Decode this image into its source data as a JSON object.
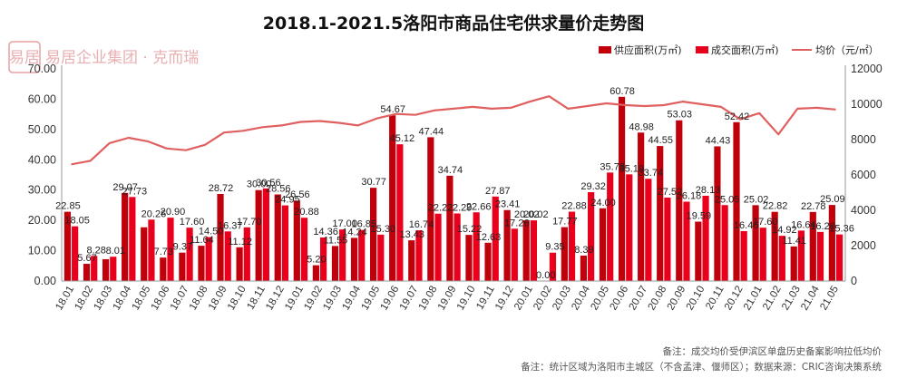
{
  "chart_data": {
    "type": "bar",
    "title": "2018.1-2021.5洛阳市商品住宅供求量价走势图",
    "categories": [
      "18.01",
      "18.02",
      "18.03",
      "18.04",
      "18.05",
      "18.06",
      "18.07",
      "18.08",
      "18.09",
      "18.10",
      "18.11",
      "18.12",
      "19.01",
      "19.02",
      "19.03",
      "19.04",
      "19.05",
      "19.06",
      "19.07",
      "19.08",
      "19.09",
      "19.10",
      "19.11",
      "19.12",
      "20.01",
      "20.02",
      "20.03",
      "20.04",
      "20.05",
      "20.06",
      "20.07",
      "20.08",
      "20.09",
      "20.10",
      "20.11",
      "20.12",
      "21.01",
      "21.02",
      "21.03",
      "21.04",
      "21.05"
    ],
    "series": [
      {
        "name": "供应面积(万㎡)",
        "color": "#c0000a",
        "values": [
          22.85,
          5.67,
          7.2,
          29.07,
          17.73,
          7.73,
          9.37,
          11.64,
          28.72,
          11.12,
          30.0,
          28.56,
          26.56,
          5.2,
          11.55,
          14.24,
          30.77,
          54.67,
          13.43,
          47.44,
          34.74,
          15.22,
          12.63,
          23.41,
          20.02,
          0.0,
          17.77,
          8.39,
          24.0,
          60.78,
          48.98,
          44.55,
          53.03,
          19.59,
          44.43,
          52.42,
          25.02,
          22.82,
          11.41,
          22.78,
          25.09
        ],
        "labels": [
          "22.85",
          "5.67",
          "",
          "29.07",
          "",
          "7.73",
          "9.37",
          "11.64",
          "28.72",
          "11.12",
          "30.00",
          "28.56",
          "26.56",
          "5.20",
          "11.55",
          "14.24",
          "30.77",
          "54.67",
          "13.43",
          "47.44",
          "34.74",
          "15.22",
          "12.63",
          "23.41",
          "20.02",
          "0.00",
          "17.77",
          "8.39",
          "24.00",
          "60.78",
          "48.98",
          "44.55",
          "53.03",
          "19.59",
          "44.43",
          "52.42",
          "25.02",
          "22.82",
          "11.41",
          "22.78",
          "25.09"
        ]
      },
      {
        "name": "成交面积(万㎡)",
        "color": "#e8001c",
        "values": [
          18.05,
          8.28,
          8.01,
          27.73,
          20.26,
          20.9,
          17.6,
          14.5,
          16.37,
          17.7,
          30.56,
          24.95,
          20.88,
          14.36,
          17.0,
          16.85,
          15.3,
          45.12,
          16.74,
          22.22,
          22.29,
          22.66,
          27.87,
          17.26,
          20.02,
          9.35,
          22.88,
          29.32,
          35.78,
          35.19,
          33.74,
          27.52,
          26.18,
          28.13,
          25.05,
          16.46,
          17.6,
          14.92,
          16.64,
          16.2,
          15.36
        ],
        "labels": [
          "18.05",
          "8.28",
          "8.01",
          "27.73",
          "20.26",
          "20.90",
          "17.60",
          "14.50",
          "16.37",
          "17.70",
          "30.56",
          "24.95",
          "20.88",
          "14.36",
          "17.00",
          "16.85",
          "15.30",
          "45.12",
          "16.74",
          "22.22",
          "22.29",
          "22.66",
          "27.87",
          "17.26",
          "20.02",
          "9.35",
          "22.88",
          "29.32",
          "35.78",
          "35.19",
          "33.74",
          "27.52",
          "26.18",
          "28.13",
          "25.05",
          "16.46",
          "17.60",
          "14.92",
          "16.64",
          "16.20",
          "15.36"
        ]
      },
      {
        "name": "均价（元/㎡）",
        "color": "#e06060",
        "axis": "right",
        "values": [
          6600,
          6800,
          7800,
          8100,
          7900,
          7500,
          7400,
          7700,
          8400,
          8500,
          8700,
          8800,
          9000,
          9050,
          8950,
          8800,
          9200,
          9450,
          9400,
          9650,
          9750,
          9850,
          9750,
          9800,
          10150,
          10450,
          9750,
          9900,
          10050,
          9950,
          9900,
          9950,
          10150,
          10000,
          9850,
          9150,
          9500,
          8300,
          9750,
          9800,
          9700
        ]
      }
    ],
    "y_left": {
      "ylim": [
        0,
        70
      ],
      "ticks": [
        "0.00",
        "10.00",
        "20.00",
        "30.00",
        "40.00",
        "50.00",
        "60.00",
        "70.00"
      ]
    },
    "y_right": {
      "ylim": [
        0,
        12000
      ],
      "ticks": [
        "0",
        "2000",
        "4000",
        "6000",
        "8000",
        "10000",
        "12000"
      ]
    },
    "grid": false,
    "legend_position": "top-right"
  },
  "watermark": {
    "text": "易居企业集团 · 克而瑞",
    "badge": "易居"
  },
  "notes": {
    "line1": "备注：成交均价受伊滨区单盘历史备案影响拉低均价",
    "line2": "备注：统计区域为洛阳市主城区（不含孟津、偃师区）；数据来源：CRIC咨询决策系统"
  }
}
